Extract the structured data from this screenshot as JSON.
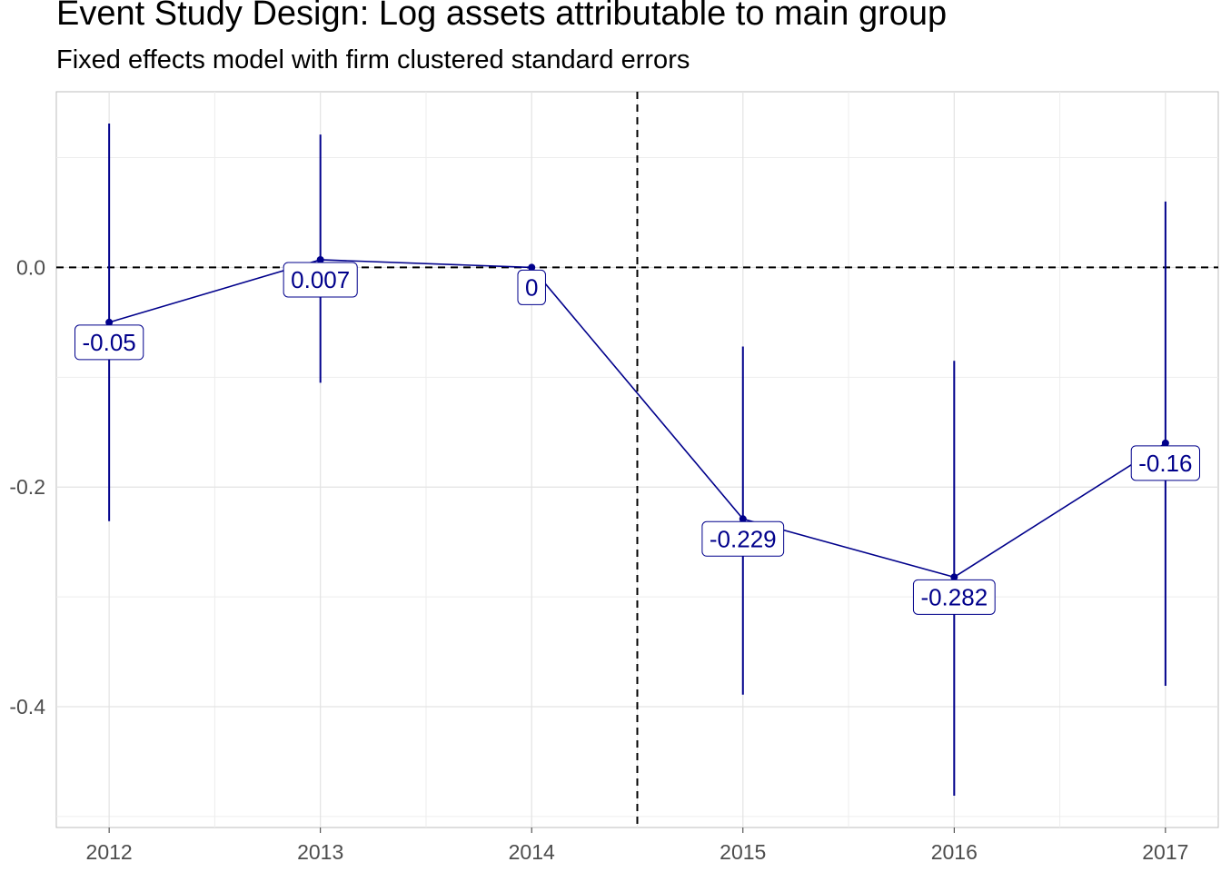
{
  "chart_data": {
    "type": "line",
    "title": "Event Study Design: Log assets attributable to main group",
    "subtitle": "Fixed effects model with firm clustered standard errors",
    "xlabel": "",
    "ylabel": "",
    "x": [
      2012,
      2013,
      2014,
      2015,
      2016,
      2017
    ],
    "x_tick_labels": [
      "2012",
      "2013",
      "2014",
      "2015",
      "2016",
      "2017"
    ],
    "y_ticks": [
      0.0,
      -0.2,
      -0.4
    ],
    "y_tick_labels": [
      "0.0",
      "-0.2",
      "-0.4"
    ],
    "xlim": [
      2011.75,
      2017.25
    ],
    "ylim": [
      -0.51,
      0.16
    ],
    "series": [
      {
        "values": [
          -0.05,
          0.007,
          0,
          -0.229,
          -0.282,
          -0.16
        ],
        "labels": [
          "-0.05",
          "0.007",
          "0",
          "-0.229",
          "-0.282",
          "-0.16"
        ],
        "ci_low": [
          -0.231,
          -0.105,
          0,
          -0.389,
          -0.481,
          -0.381
        ],
        "ci_high": [
          0.131,
          0.121,
          0,
          -0.072,
          -0.085,
          0.06
        ]
      }
    ],
    "reference_lines": {
      "horizontal_y": 0,
      "vertical_x": 2014.5,
      "style": "dashed"
    },
    "grid": true,
    "legend": "none",
    "colors": {
      "series": "#00008B",
      "grid": "#e3e3e3",
      "reference": "#000000",
      "axis_text": "#4d4d4d"
    }
  }
}
